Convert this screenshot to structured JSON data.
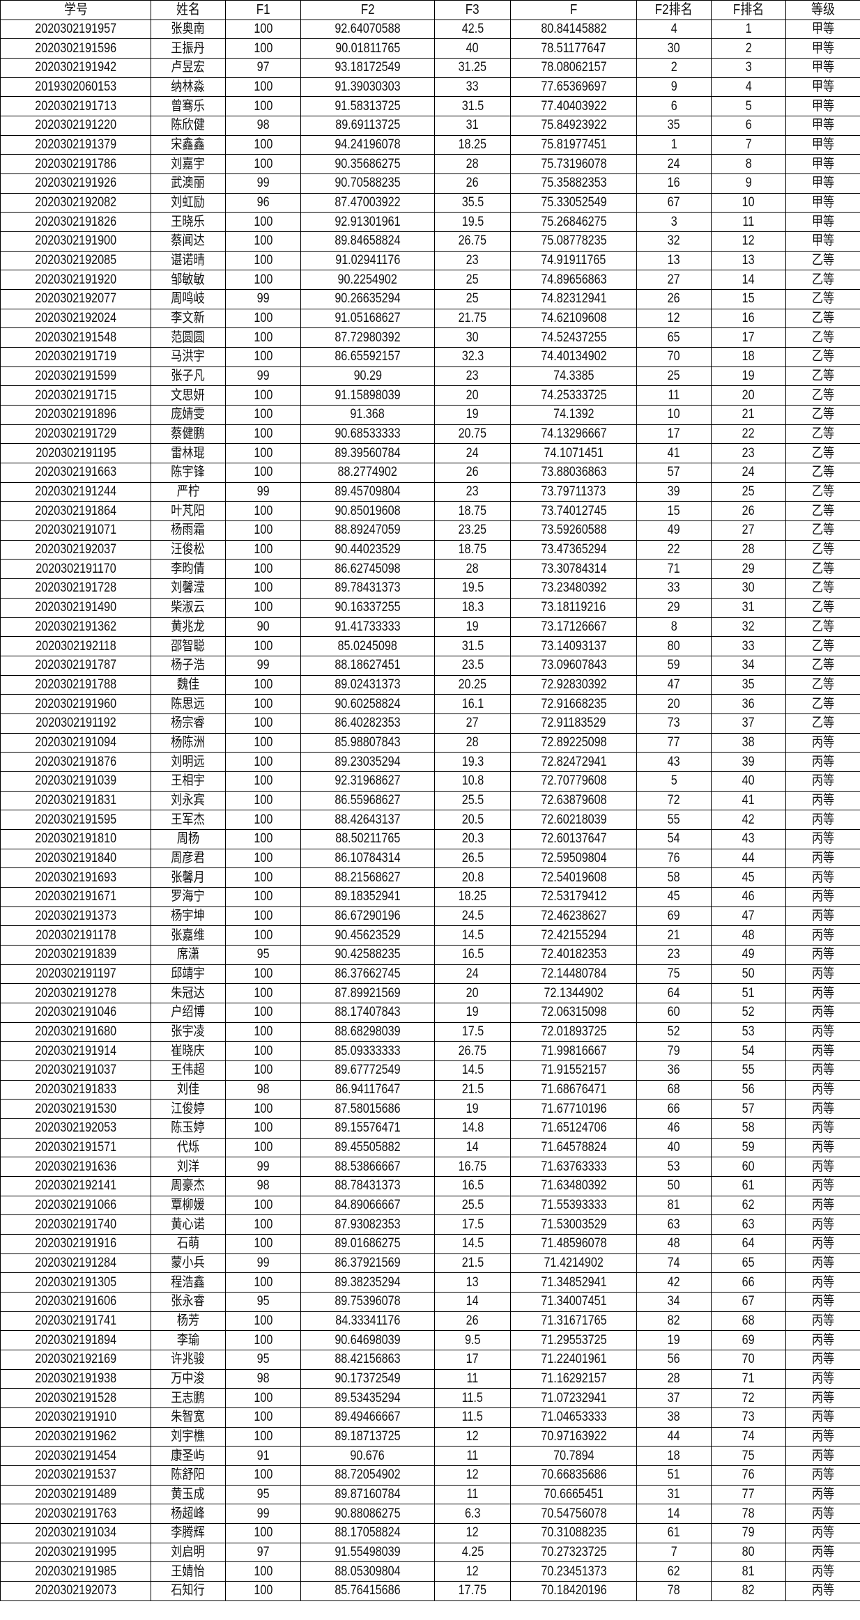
{
  "headers": [
    "学号",
    "姓名",
    "F1",
    "F2",
    "F3",
    "F",
    "F2排名",
    "F排名",
    "等级"
  ],
  "rows": [
    [
      "2020302191957",
      "张奥南",
      "100",
      "92.64070588",
      "42.5",
      "80.84145882",
      "4",
      "1",
      "甲等"
    ],
    [
      "2020302191596",
      "王振丹",
      "100",
      "90.01811765",
      "40",
      "78.51177647",
      "30",
      "2",
      "甲等"
    ],
    [
      "2020302191942",
      "卢昱宏",
      "97",
      "93.18172549",
      "31.25",
      "78.08062157",
      "2",
      "3",
      "甲等"
    ],
    [
      "2019302060153",
      "纳林淼",
      "100",
      "91.39030303",
      "33",
      "77.65369697",
      "9",
      "4",
      "甲等"
    ],
    [
      "2020302191713",
      "曾骞乐",
      "100",
      "91.58313725",
      "31.5",
      "77.40403922",
      "6",
      "5",
      "甲等"
    ],
    [
      "2020302191220",
      "陈欣健",
      "98",
      "89.69113725",
      "31",
      "75.84923922",
      "35",
      "6",
      "甲等"
    ],
    [
      "2020302191379",
      "宋鑫鑫",
      "100",
      "94.24196078",
      "18.25",
      "75.81977451",
      "1",
      "7",
      "甲等"
    ],
    [
      "2020302191786",
      "刘嘉宇",
      "100",
      "90.35686275",
      "28",
      "75.73196078",
      "24",
      "8",
      "甲等"
    ],
    [
      "2020302191926",
      "武澳丽",
      "99",
      "90.70588235",
      "26",
      "75.35882353",
      "16",
      "9",
      "甲等"
    ],
    [
      "2020302192082",
      "刘虹励",
      "96",
      "87.47003922",
      "35.5",
      "75.33052549",
      "67",
      "10",
      "甲等"
    ],
    [
      "2020302191826",
      "王晓乐",
      "100",
      "92.91301961",
      "19.5",
      "75.26846275",
      "3",
      "11",
      "甲等"
    ],
    [
      "2020302191900",
      "蔡闻达",
      "100",
      "89.84658824",
      "26.75",
      "75.08778235",
      "32",
      "12",
      "甲等"
    ],
    [
      "2020302192085",
      "谌诺晴",
      "100",
      "91.02941176",
      "23",
      "74.91911765",
      "13",
      "13",
      "乙等"
    ],
    [
      "2020302191920",
      "邹敏敏",
      "100",
      "90.2254902",
      "25",
      "74.89656863",
      "27",
      "14",
      "乙等"
    ],
    [
      "2020302192077",
      "周鸣岐",
      "99",
      "90.26635294",
      "25",
      "74.82312941",
      "26",
      "15",
      "乙等"
    ],
    [
      "2020302192024",
      "李文新",
      "100",
      "91.05168627",
      "21.75",
      "74.62109608",
      "12",
      "16",
      "乙等"
    ],
    [
      "2020302191548",
      "范圆圆",
      "100",
      "87.72980392",
      "30",
      "74.52437255",
      "65",
      "17",
      "乙等"
    ],
    [
      "2020302191719",
      "马洪宇",
      "100",
      "86.65592157",
      "32.3",
      "74.40134902",
      "70",
      "18",
      "乙等"
    ],
    [
      "2020302191599",
      "张子凡",
      "99",
      "90.29",
      "23",
      "74.3385",
      "25",
      "19",
      "乙等"
    ],
    [
      "2020302191715",
      "文思妍",
      "100",
      "91.15898039",
      "20",
      "74.25333725",
      "11",
      "20",
      "乙等"
    ],
    [
      "2020302191896",
      "庞婧雯",
      "100",
      "91.368",
      "19",
      "74.1392",
      "10",
      "21",
      "乙等"
    ],
    [
      "2020302191729",
      "蔡健鹏",
      "100",
      "90.68533333",
      "20.75",
      "74.13296667",
      "17",
      "22",
      "乙等"
    ],
    [
      "2020302191195",
      "雷林琨",
      "100",
      "89.39560784",
      "24",
      "74.1071451",
      "41",
      "23",
      "乙等"
    ],
    [
      "2020302191663",
      "陈宇锋",
      "100",
      "88.2774902",
      "26",
      "73.88036863",
      "57",
      "24",
      "乙等"
    ],
    [
      "2020302191244",
      "严柠",
      "99",
      "89.45709804",
      "23",
      "73.79711373",
      "39",
      "25",
      "乙等"
    ],
    [
      "2020302191864",
      "叶芃阳",
      "100",
      "90.85019608",
      "18.75",
      "73.74012745",
      "15",
      "26",
      "乙等"
    ],
    [
      "2020302191071",
      "杨雨霜",
      "100",
      "88.89247059",
      "23.25",
      "73.59260588",
      "49",
      "27",
      "乙等"
    ],
    [
      "2020302192037",
      "汪俊松",
      "100",
      "90.44023529",
      "18.75",
      "73.47365294",
      "22",
      "28",
      "乙等"
    ],
    [
      "2020302191170",
      "李昀倩",
      "100",
      "86.62745098",
      "28",
      "73.30784314",
      "71",
      "29",
      "乙等"
    ],
    [
      "2020302191728",
      "刘馨滢",
      "100",
      "89.78431373",
      "19.5",
      "73.23480392",
      "33",
      "30",
      "乙等"
    ],
    [
      "2020302191490",
      "柴淑云",
      "100",
      "90.16337255",
      "18.3",
      "73.18119216",
      "29",
      "31",
      "乙等"
    ],
    [
      "2020302191362",
      "黄兆龙",
      "90",
      "91.41733333",
      "19",
      "73.17126667",
      "8",
      "32",
      "乙等"
    ],
    [
      "2020302192118",
      "邵智聪",
      "100",
      "85.0245098",
      "31.5",
      "73.14093137",
      "80",
      "33",
      "乙等"
    ],
    [
      "2020302191787",
      "杨子浩",
      "99",
      "88.18627451",
      "23.5",
      "73.09607843",
      "59",
      "34",
      "乙等"
    ],
    [
      "2020302191788",
      "魏佳",
      "100",
      "89.02431373",
      "20.25",
      "72.92830392",
      "47",
      "35",
      "乙等"
    ],
    [
      "2020302191960",
      "陈思远",
      "100",
      "90.60258824",
      "16.1",
      "72.91668235",
      "20",
      "36",
      "乙等"
    ],
    [
      "2020302191192",
      "杨宗睿",
      "100",
      "86.40282353",
      "27",
      "72.91183529",
      "73",
      "37",
      "乙等"
    ],
    [
      "2020302191094",
      "杨陈洲",
      "100",
      "85.98807843",
      "28",
      "72.89225098",
      "77",
      "38",
      "丙等"
    ],
    [
      "2020302191876",
      "刘明远",
      "100",
      "89.23035294",
      "19.3",
      "72.82472941",
      "43",
      "39",
      "丙等"
    ],
    [
      "2020302191039",
      "王相宇",
      "100",
      "92.31968627",
      "10.8",
      "72.70779608",
      "5",
      "40",
      "丙等"
    ],
    [
      "2020302191831",
      "刘永宾",
      "100",
      "86.55968627",
      "25.5",
      "72.63879608",
      "72",
      "41",
      "丙等"
    ],
    [
      "2020302191595",
      "王军杰",
      "100",
      "88.42643137",
      "20.5",
      "72.60218039",
      "55",
      "42",
      "丙等"
    ],
    [
      "2020302191810",
      "周杨",
      "100",
      "88.50211765",
      "20.3",
      "72.60137647",
      "54",
      "43",
      "丙等"
    ],
    [
      "2020302191840",
      "周彦君",
      "100",
      "86.10784314",
      "26.5",
      "72.59509804",
      "76",
      "44",
      "丙等"
    ],
    [
      "2020302191693",
      "张馨月",
      "100",
      "88.21568627",
      "20.8",
      "72.54019608",
      "58",
      "45",
      "丙等"
    ],
    [
      "2020302191671",
      "罗海宁",
      "100",
      "89.18352941",
      "18.25",
      "72.53179412",
      "45",
      "46",
      "丙等"
    ],
    [
      "2020302191373",
      "杨宇坤",
      "100",
      "86.67290196",
      "24.5",
      "72.46238627",
      "69",
      "47",
      "丙等"
    ],
    [
      "2020302191178",
      "张嘉维",
      "100",
      "90.45623529",
      "14.5",
      "72.42155294",
      "21",
      "48",
      "丙等"
    ],
    [
      "2020302191839",
      "席潇",
      "95",
      "90.42588235",
      "16.5",
      "72.40182353",
      "23",
      "49",
      "丙等"
    ],
    [
      "2020302191197",
      "邱靖宇",
      "100",
      "86.37662745",
      "24",
      "72.14480784",
      "75",
      "50",
      "丙等"
    ],
    [
      "2020302191278",
      "朱冠达",
      "100",
      "87.89921569",
      "20",
      "72.1344902",
      "64",
      "51",
      "丙等"
    ],
    [
      "2020302191046",
      "户绍博",
      "100",
      "88.17407843",
      "19",
      "72.06315098",
      "60",
      "52",
      "丙等"
    ],
    [
      "2020302191680",
      "张宇凌",
      "100",
      "88.68298039",
      "17.5",
      "72.01893725",
      "52",
      "53",
      "丙等"
    ],
    [
      "2020302191914",
      "崔晓庆",
      "100",
      "85.09333333",
      "26.75",
      "71.99816667",
      "79",
      "54",
      "丙等"
    ],
    [
      "2020302191037",
      "王伟超",
      "100",
      "89.67772549",
      "14.5",
      "71.91552157",
      "36",
      "55",
      "丙等"
    ],
    [
      "2020302191833",
      "刘佳",
      "98",
      "86.94117647",
      "21.5",
      "71.68676471",
      "68",
      "56",
      "丙等"
    ],
    [
      "2020302191530",
      "江俊婷",
      "100",
      "87.58015686",
      "19",
      "71.67710196",
      "66",
      "57",
      "丙等"
    ],
    [
      "2020302192053",
      "陈玉婷",
      "100",
      "89.15576471",
      "14.8",
      "71.65124706",
      "46",
      "58",
      "丙等"
    ],
    [
      "2020302191571",
      "代烁",
      "100",
      "89.45505882",
      "14",
      "71.64578824",
      "40",
      "59",
      "丙等"
    ],
    [
      "2020302191636",
      "刘洋",
      "99",
      "88.53866667",
      "16.75",
      "71.63763333",
      "53",
      "60",
      "丙等"
    ],
    [
      "2020302192141",
      "周豪杰",
      "98",
      "88.78431373",
      "16.5",
      "71.63480392",
      "50",
      "61",
      "丙等"
    ],
    [
      "2020302191066",
      "覃柳媛",
      "100",
      "84.89066667",
      "25.5",
      "71.55393333",
      "81",
      "62",
      "丙等"
    ],
    [
      "2020302191740",
      "黄心诺",
      "100",
      "87.93082353",
      "17.5",
      "71.53003529",
      "63",
      "63",
      "丙等"
    ],
    [
      "2020302191916",
      "石萌",
      "100",
      "89.01686275",
      "14.5",
      "71.48596078",
      "48",
      "64",
      "丙等"
    ],
    [
      "2020302191284",
      "蒙小兵",
      "99",
      "86.37921569",
      "21.5",
      "71.4214902",
      "74",
      "65",
      "丙等"
    ],
    [
      "2020302191305",
      "程浩鑫",
      "100",
      "89.38235294",
      "13",
      "71.34852941",
      "42",
      "66",
      "丙等"
    ],
    [
      "2020302191606",
      "张永睿",
      "95",
      "89.75396078",
      "14",
      "71.34007451",
      "34",
      "67",
      "丙等"
    ],
    [
      "2020302191741",
      "杨芳",
      "100",
      "84.33341176",
      "26",
      "71.31671765",
      "82",
      "68",
      "丙等"
    ],
    [
      "2020302191894",
      "李瑜",
      "100",
      "90.64698039",
      "9.5",
      "71.29553725",
      "19",
      "69",
      "丙等"
    ],
    [
      "2020302192169",
      "许兆骏",
      "95",
      "88.42156863",
      "17",
      "71.22401961",
      "56",
      "70",
      "丙等"
    ],
    [
      "2020302191938",
      "万中浚",
      "98",
      "90.17372549",
      "11",
      "71.16292157",
      "28",
      "71",
      "丙等"
    ],
    [
      "2020302191528",
      "王志鹏",
      "100",
      "89.53435294",
      "11.5",
      "71.07232941",
      "37",
      "72",
      "丙等"
    ],
    [
      "2020302191910",
      "朱智宽",
      "100",
      "89.49466667",
      "11.5",
      "71.04653333",
      "38",
      "73",
      "丙等"
    ],
    [
      "2020302191962",
      "刘宇樵",
      "100",
      "89.18713725",
      "12",
      "70.97163922",
      "44",
      "74",
      "丙等"
    ],
    [
      "2020302191454",
      "康圣屿",
      "91",
      "90.676",
      "11",
      "70.7894",
      "18",
      "75",
      "丙等"
    ],
    [
      "2020302191537",
      "陈舒阳",
      "100",
      "88.72054902",
      "12",
      "70.66835686",
      "51",
      "76",
      "丙等"
    ],
    [
      "2020302191489",
      "黄玉成",
      "95",
      "89.87160784",
      "11",
      "70.6665451",
      "31",
      "77",
      "丙等"
    ],
    [
      "2020302191763",
      "杨超峰",
      "99",
      "90.88086275",
      "6.3",
      "70.54756078",
      "14",
      "78",
      "丙等"
    ],
    [
      "2020302191034",
      "李腾辉",
      "100",
      "88.17058824",
      "12",
      "70.31088235",
      "61",
      "79",
      "丙等"
    ],
    [
      "2020302191995",
      "刘启明",
      "97",
      "91.55498039",
      "4.25",
      "70.27323725",
      "7",
      "80",
      "丙等"
    ],
    [
      "2020302191985",
      "王婧怡",
      "100",
      "88.05309804",
      "12",
      "70.23451373",
      "62",
      "81",
      "丙等"
    ],
    [
      "2020302192073",
      "石知行",
      "100",
      "85.76415686",
      "17.75",
      "70.18420196",
      "78",
      "82",
      "丙等"
    ]
  ]
}
